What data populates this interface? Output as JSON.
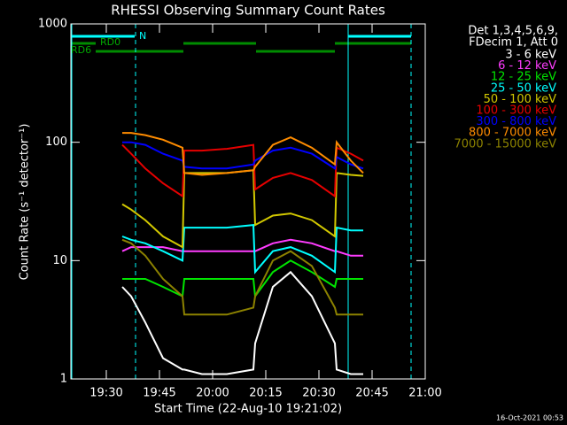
{
  "chart_data": {
    "type": "line",
    "title": "RHESSI Observing Summary Count Rates",
    "x_label": "Start Time (22-Aug-10 19:21:02)",
    "y_label": "Count Rate (s⁻¹ detector⁻¹)",
    "annotations": [
      "N",
      "RD0",
      "RD6",
      "Det 1,3,4,5,6,9,",
      "FDecim 1, Att 0",
      "16-Oct-2021 00:53"
    ],
    "log_y": true,
    "xlim": [
      1160,
      1260
    ],
    "xticks": [
      {
        "value": 1170,
        "label": "19:30"
      },
      {
        "value": 1185,
        "label": "19:45"
      },
      {
        "value": 1200,
        "label": "20:00"
      },
      {
        "value": 1215,
        "label": "20:15"
      },
      {
        "value": 1230,
        "label": "20:30"
      },
      {
        "value": 1245,
        "label": "20:45"
      },
      {
        "value": 1260,
        "label": "21:00"
      }
    ],
    "ylim": [
      1,
      1000
    ],
    "yticks": [
      1,
      10,
      100,
      1000
    ],
    "x": [
      1174.5,
      1177,
      1181,
      1186,
      1191.5,
      1192,
      1197,
      1204,
      1211.5,
      1212,
      1217,
      1222,
      1228,
      1234.5,
      1235,
      1239,
      1242.5
    ],
    "series": [
      {
        "name": "3 - 6 keV",
        "color": "#ffffff",
        "values": [
          6,
          5,
          3,
          1.5,
          1.2,
          1.2,
          1.1,
          1.1,
          1.2,
          2,
          6,
          8,
          5,
          2,
          1.2,
          1.1,
          1.1
        ]
      },
      {
        "name": "6 - 12 keV",
        "color": "#ff3cff",
        "values": [
          12,
          13,
          13,
          13,
          12,
          12,
          12,
          12,
          12,
          12,
          14,
          15,
          14,
          12,
          12,
          11,
          11
        ]
      },
      {
        "name": "12 - 25 keV",
        "color": "#00e600",
        "values": [
          7,
          7,
          7,
          6,
          5,
          7,
          7,
          7,
          7,
          5,
          8,
          10,
          8,
          6,
          7,
          7,
          7
        ]
      },
      {
        "name": "25 - 50 keV",
        "color": "#00ffff",
        "values": [
          16,
          15,
          14,
          12,
          10,
          19,
          19,
          19,
          20,
          8,
          12,
          13,
          11,
          8,
          19,
          18,
          18
        ]
      },
      {
        "name": "50 - 100 keV",
        "color": "#d2c800",
        "values": [
          30,
          27,
          22,
          16,
          13,
          55,
          55,
          55,
          58,
          20,
          24,
          25,
          22,
          16,
          55,
          53,
          52
        ]
      },
      {
        "name": "100 - 300 keV",
        "color": "#e60000",
        "values": [
          95,
          80,
          60,
          45,
          35,
          85,
          85,
          88,
          95,
          40,
          50,
          55,
          48,
          35,
          90,
          80,
          70
        ]
      },
      {
        "name": "300 - 800 keV",
        "color": "#0000ff",
        "values": [
          100,
          100,
          95,
          80,
          70,
          62,
          60,
          60,
          65,
          70,
          85,
          90,
          80,
          60,
          75,
          65,
          60
        ]
      },
      {
        "name": "800 - 7000 keV",
        "color": "#ff8c00",
        "values": [
          120,
          120,
          115,
          105,
          90,
          55,
          53,
          55,
          58,
          62,
          95,
          110,
          90,
          65,
          100,
          70,
          55
        ]
      },
      {
        "name": "7000 - 15000 keV",
        "color": "#8c8200",
        "values": [
          15,
          14,
          11,
          7,
          5,
          3.5,
          3.5,
          3.5,
          4,
          5,
          10,
          12,
          9,
          4,
          3.5,
          3.5,
          3.5
        ]
      }
    ]
  }
}
